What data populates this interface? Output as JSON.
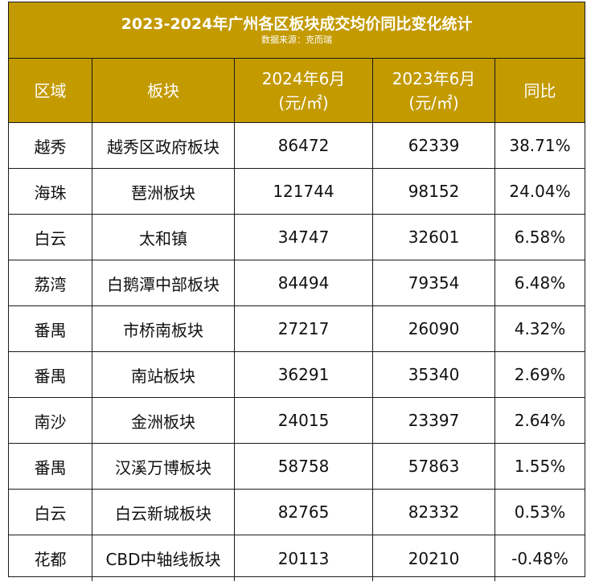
{
  "title": "2023-2024年广州各区板块成交均价同比变化统计",
  "source": "数据来源：克而瑞",
  "colors": {
    "header_bg": "#c39a00",
    "header_text": "#ffffff",
    "border": "#1a1a1a"
  },
  "columns": {
    "district": "区域",
    "block": "板块",
    "price_2024_line1": "2024年6月",
    "price_2024_line2": "(元/㎡)",
    "price_2023_line1": "2023年6月",
    "price_2023_line2": "(元/㎡)",
    "yoy": "同比"
  },
  "rows": [
    {
      "district": "越秀",
      "block": "越秀区政府板块",
      "price_2024": "86472",
      "price_2023": "62339",
      "yoy": "38.71%"
    },
    {
      "district": "海珠",
      "block": "琶洲板块",
      "price_2024": "121744",
      "price_2023": "98152",
      "yoy": "24.04%"
    },
    {
      "district": "白云",
      "block": "太和镇",
      "price_2024": "34747",
      "price_2023": "32601",
      "yoy": "6.58%"
    },
    {
      "district": "荔湾",
      "block": "白鹅潭中部板块",
      "price_2024": "84494",
      "price_2023": "79354",
      "yoy": "6.48%"
    },
    {
      "district": "番禺",
      "block": "市桥南板块",
      "price_2024": "27217",
      "price_2023": "26090",
      "yoy": "4.32%"
    },
    {
      "district": "番禺",
      "block": "南站板块",
      "price_2024": "36291",
      "price_2023": "35340",
      "yoy": "2.69%"
    },
    {
      "district": "南沙",
      "block": "金洲板块",
      "price_2024": "24015",
      "price_2023": "23397",
      "yoy": "2.64%"
    },
    {
      "district": "番禺",
      "block": "汉溪万博板块",
      "price_2024": "58758",
      "price_2023": "57863",
      "yoy": "1.55%"
    },
    {
      "district": "白云",
      "block": "白云新城板块",
      "price_2024": "82765",
      "price_2023": "82332",
      "yoy": "0.53%"
    },
    {
      "district": "花都",
      "block": "CBD中轴线板块",
      "price_2024": "20113",
      "price_2023": "20210",
      "yoy": "-0.48%"
    }
  ]
}
